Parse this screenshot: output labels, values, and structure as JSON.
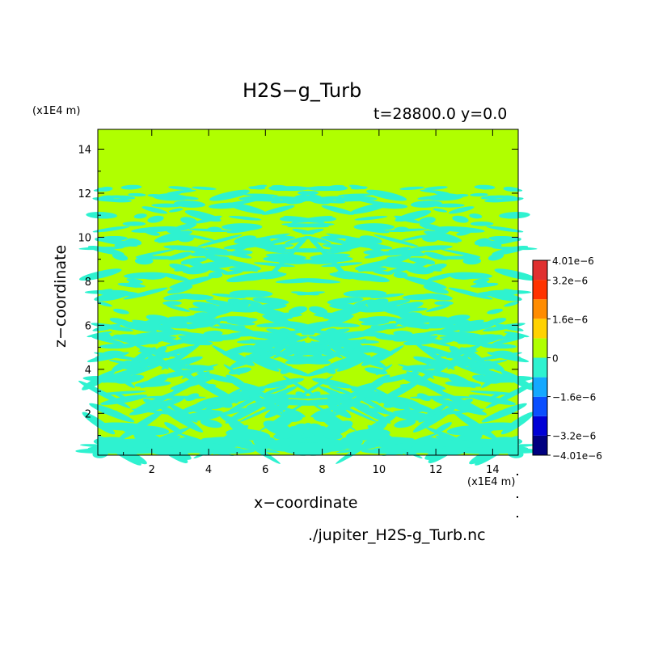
{
  "title": "H2S−g_Turb",
  "subtitle": "t=28800.0 y=0.0",
  "source_file": "./jupiter_H2S-g_Turb.nc",
  "chart_data": {
    "type": "heatmap",
    "title": "H2S−g_Turb",
    "xlabel": "x−coordinate",
    "ylabel": "z−coordinate",
    "x_unit": "(x1E4 m)",
    "z_unit": "(x1E4 m)",
    "xlim": [
      0.1,
      14.9
    ],
    "ylim": [
      0.1,
      14.9
    ],
    "x_ticks": [
      2,
      4,
      6,
      8,
      10,
      12,
      14
    ],
    "y_ticks": [
      2,
      4,
      6,
      8,
      10,
      12,
      14
    ],
    "colorbar": {
      "range": [
        -4.01e-06,
        4.01e-06
      ],
      "labels": [
        "4.01e−6",
        "3.2e−6",
        "1.6e−6",
        "0",
        "−1.6e−6",
        "−3.2e−6",
        "−4.01e−6"
      ],
      "label_values": [
        4.01e-06,
        3.2e-06,
        1.6e-06,
        0,
        -1.6e-06,
        -3.2e-06,
        -4.01e-06
      ],
      "colors": [
        "#000080",
        "#0000d6",
        "#0a4fff",
        "#14a8ff",
        "#2ef2d0",
        "#b0ff00",
        "#ffd200",
        "#ff8c00",
        "#ff3300",
        "#e03030"
      ]
    },
    "field": {
      "background_value": 2e-07,
      "background_color": "#b0ff00",
      "negative_color": "#2ef2d0",
      "description_values": "Field mostly slightly positive (green) above z≈12.5; banded turbulent negative (cyan) structures below, mirrored about x≈7.5"
    }
  }
}
